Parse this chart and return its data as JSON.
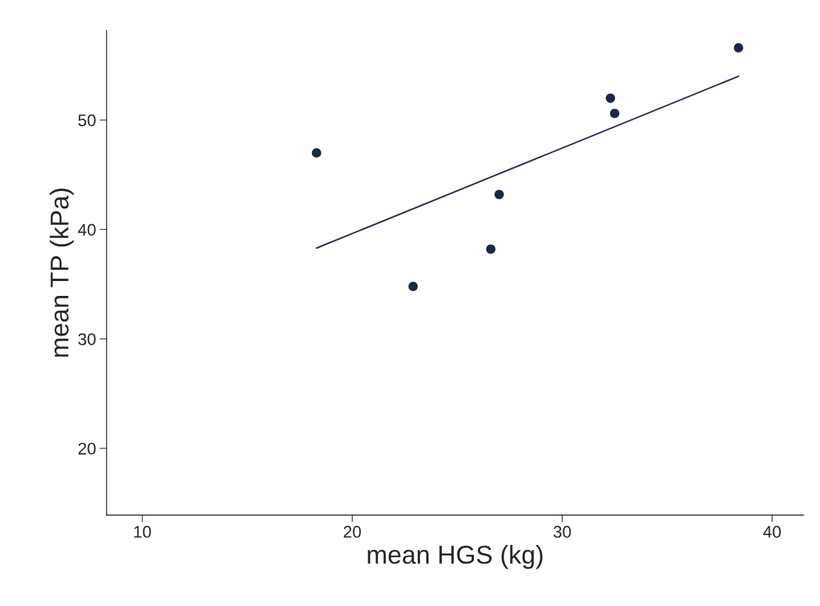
{
  "chart_data": {
    "type": "scatter",
    "xlabel": "mean HGS (kg)",
    "ylabel": "mean TP (kPa)",
    "series": [
      {
        "color": "#1a2747",
        "marker": "circle",
        "x": [
          18.3,
          22.9,
          26.6,
          27.0,
          32.3,
          32.5,
          38.4
        ],
        "values": [
          47.0,
          34.8,
          38.2,
          43.2,
          52.0,
          50.6,
          56.6
        ]
      },
      {
        "type": "line",
        "color": "#2a3558",
        "x": [
          18.3,
          38.4
        ],
        "values": [
          38.3,
          54.0
        ]
      }
    ],
    "grid": false,
    "xlim": [
      8.3,
      41.5
    ],
    "xticks": [
      10,
      20,
      30,
      40
    ],
    "ylim": [
      13.9,
      58.2
    ],
    "yticks": [
      20,
      30,
      40,
      50
    ]
  }
}
